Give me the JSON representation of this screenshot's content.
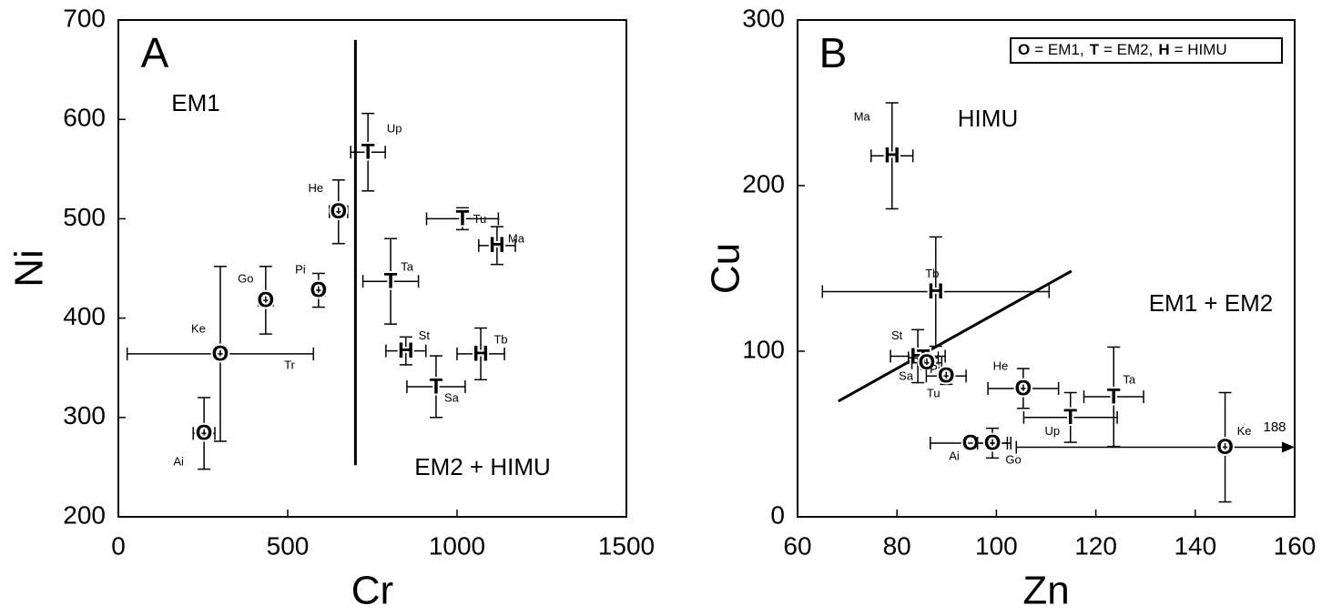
{
  "chart_data": [
    {
      "type": "scatter",
      "panel_label": "A",
      "x_label": "Cr",
      "y_label": "Ni",
      "xlim": [
        0,
        1500
      ],
      "ylim": [
        200,
        700
      ],
      "xticks": [
        0,
        500,
        1000,
        1500
      ],
      "yticks": [
        200,
        300,
        400,
        500,
        600,
        700
      ],
      "annotations": [
        "EM1",
        "EM2 + HIMU"
      ],
      "line": {
        "x": [
          700,
          700
        ],
        "y": [
          252,
          680
        ]
      },
      "points": [
        {
          "symbol": "O",
          "label": "Ai",
          "x": 253,
          "y": 284,
          "xerr": 32,
          "yerr": 36
        },
        {
          "symbol": "O",
          "label": "Ke",
          "x": 301,
          "y": 364,
          "xerr": null,
          "yerr": 88
        },
        {
          "symbol": "O",
          "label": "Tr",
          "x": 301,
          "y": 364,
          "xerr": 275,
          "yerr": null
        },
        {
          "symbol": "O",
          "label": "Go",
          "x": 435,
          "y": 418,
          "xerr": 22,
          "yerr": 34
        },
        {
          "symbol": "O",
          "label": "Pi",
          "x": 591,
          "y": 428,
          "xerr": 19,
          "yerr": 17
        },
        {
          "symbol": "O",
          "label": "He",
          "x": 650,
          "y": 507,
          "xerr": 27,
          "yerr": 32
        },
        {
          "symbol": "T",
          "label": "Up",
          "x": 737,
          "y": 567,
          "xerr": 51,
          "yerr": 39
        },
        {
          "symbol": "T",
          "label": "Tu",
          "x": 1016,
          "y": 500,
          "xerr": 106,
          "yerr": 11
        },
        {
          "symbol": "H",
          "label": "Ma",
          "x": 1118,
          "y": 473,
          "xerr": 54,
          "yerr": 19
        },
        {
          "symbol": "T",
          "label": "Ta",
          "x": 804,
          "y": 437,
          "xerr": 82,
          "yerr": 43
        },
        {
          "symbol": "H",
          "label": "St",
          "x": 849,
          "y": 367,
          "xerr": 59,
          "yerr": 14
        },
        {
          "symbol": "H",
          "label": "Tb",
          "x": 1070,
          "y": 364,
          "xerr": 70,
          "yerr": 26
        },
        {
          "symbol": "T",
          "label": "Sa",
          "x": 938,
          "y": 331,
          "xerr": 86,
          "yerr": 31
        }
      ]
    },
    {
      "type": "scatter",
      "panel_label": "B",
      "x_label": "Zn",
      "y_label": "Cu",
      "xlim": [
        60,
        160
      ],
      "ylim": [
        0,
        300
      ],
      "xticks": [
        60,
        80,
        100,
        120,
        140,
        160
      ],
      "yticks": [
        0,
        100,
        200,
        300
      ],
      "annotations": [
        "HIMU",
        "EM1 + EM2",
        "188"
      ],
      "legend": [
        {
          "symbol": "O",
          "label": "= EM1,"
        },
        {
          "symbol": "T",
          "label": "= EM2,"
        },
        {
          "symbol": "H",
          "label": "= HIMU"
        }
      ],
      "line": {
        "x": [
          68.2,
          115.1
        ],
        "y": [
          69.8,
          148.4
        ]
      },
      "points": [
        {
          "symbol": "H",
          "label": "Ma",
          "x": 79.0,
          "y": 218,
          "xerr": 4.2,
          "yerr": 32
        },
        {
          "symbol": "H",
          "label": "Tb",
          "x": 87.8,
          "y": 136,
          "xerr": 22.8,
          "yerr": 33
        },
        {
          "symbol": "H",
          "label": "St",
          "x": 84.2,
          "y": 97,
          "xerr": 5.5,
          "yerr": 16
        },
        {
          "symbol": "T",
          "label": "Sa",
          "x": 85.3,
          "y": 96,
          "xerr": 3,
          "yerr": 5
        },
        {
          "symbol": "O",
          "label": "Pi",
          "x": 86,
          "y": 93,
          "xerr": 3,
          "yerr": 4
        },
        {
          "symbol": "O",
          "label": "Tu",
          "x": 89.9,
          "y": 85,
          "xerr": 4,
          "yerr": 5
        },
        {
          "symbol": "O",
          "label": "He",
          "x": 105.4,
          "y": 77.5,
          "xerr": 7.1,
          "yerr": 12
        },
        {
          "symbol": "T",
          "label": "Ta",
          "x": 123.6,
          "y": 72.5,
          "xerr": 6,
          "yerr": 30
        },
        {
          "symbol": "T",
          "label": "Up",
          "x": 114.9,
          "y": 60,
          "xerr": 9.4,
          "yerr": 15
        },
        {
          "symbol": "O",
          "label": "Ai",
          "x": 94.8,
          "y": 44.5,
          "xerr": 8.1,
          "yerr": null
        },
        {
          "symbol": "O",
          "label": "Go",
          "x": 99.2,
          "y": 44.5,
          "xerr": 3,
          "yerr": 9
        },
        {
          "symbol": "O",
          "label": "Ke",
          "x": 146,
          "y": 42,
          "xerr": 42,
          "yerr": 33
        }
      ]
    }
  ]
}
